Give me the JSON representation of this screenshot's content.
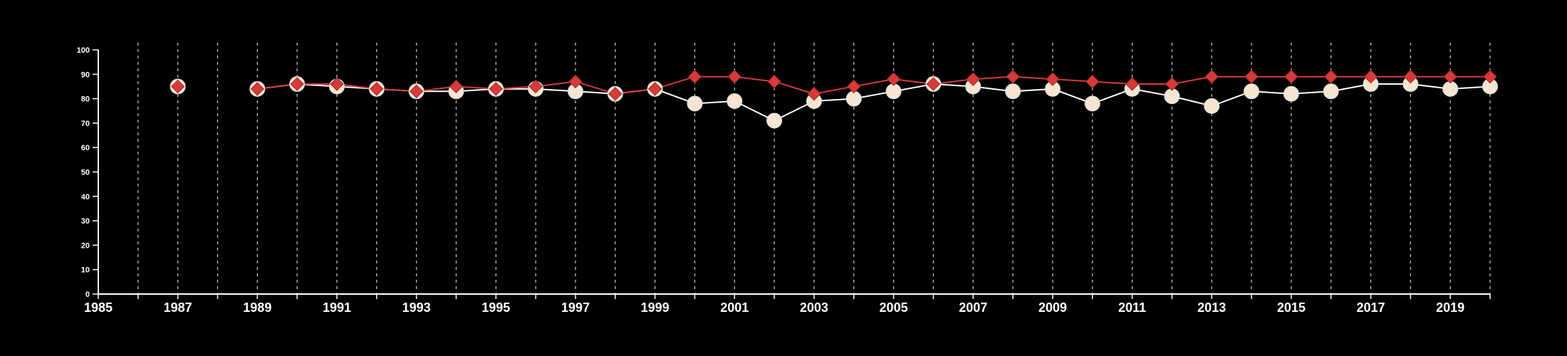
{
  "chart_data": {
    "type": "line",
    "title": "",
    "xlabel": "",
    "ylabel": "",
    "xlim": [
      1985,
      2020
    ],
    "ylim": [
      0,
      100
    ],
    "x_ticks": [
      1985,
      1987,
      1989,
      1991,
      1993,
      1995,
      1997,
      1999,
      2001,
      2003,
      2005,
      2007,
      2009,
      2011,
      2013,
      2015,
      2017,
      2019
    ],
    "x_tick_labels": [
      "1985",
      "1987",
      "1989",
      "1991",
      "1993",
      "1995",
      "1997",
      "1999",
      "2001",
      "2003",
      "2005",
      "2007",
      "2009",
      "2011",
      "2013",
      "2015",
      "2017",
      "2019"
    ],
    "y_ticks": [
      0,
      10,
      20,
      30,
      40,
      50,
      60,
      70,
      80,
      90,
      100
    ],
    "y_tick_labels": [
      "0",
      "10",
      "20",
      "30",
      "40",
      "50",
      "60",
      "70",
      "80",
      "90",
      "100"
    ],
    "grid": {
      "vertical": true,
      "horizontal": false,
      "style": "dashed",
      "color": "#bfbfbf"
    },
    "background_color": "#000000",
    "axis_color": "#ffffff",
    "series": [
      {
        "marker": "circle",
        "color": "#f5e6d3",
        "line_color": "#ffffff",
        "marker_stroke": "#d9d9d9",
        "points": [
          {
            "x": 1987,
            "y": 85
          },
          {
            "x": 1989,
            "y": 84
          },
          {
            "x": 1990,
            "y": 86
          },
          {
            "x": 1991,
            "y": 85
          },
          {
            "x": 1992,
            "y": 84
          },
          {
            "x": 1993,
            "y": 83
          },
          {
            "x": 1994,
            "y": 83
          },
          {
            "x": 1995,
            "y": 84
          },
          {
            "x": 1996,
            "y": 84
          },
          {
            "x": 1997,
            "y": 83
          },
          {
            "x": 1998,
            "y": 82
          },
          {
            "x": 1999,
            "y": 84
          },
          {
            "x": 2000,
            "y": 78
          },
          {
            "x": 2001,
            "y": 79
          },
          {
            "x": 2002,
            "y": 71
          },
          {
            "x": 2003,
            "y": 79
          },
          {
            "x": 2004,
            "y": 80
          },
          {
            "x": 2005,
            "y": 83
          },
          {
            "x": 2006,
            "y": 86
          },
          {
            "x": 2007,
            "y": 85
          },
          {
            "x": 2008,
            "y": 83
          },
          {
            "x": 2009,
            "y": 84
          },
          {
            "x": 2010,
            "y": 78
          },
          {
            "x": 2011,
            "y": 84
          },
          {
            "x": 2012,
            "y": 81
          },
          {
            "x": 2013,
            "y": 77
          },
          {
            "x": 2014,
            "y": 83
          },
          {
            "x": 2015,
            "y": 82
          },
          {
            "x": 2016,
            "y": 83
          },
          {
            "x": 2017,
            "y": 86
          },
          {
            "x": 2018,
            "y": 86
          },
          {
            "x": 2019,
            "y": 84
          },
          {
            "x": 2020,
            "y": 85
          }
        ]
      },
      {
        "marker": "diamond",
        "color": "#d63a3a",
        "line_color": "#d63a3a",
        "marker_stroke": "#a82828",
        "points": [
          {
            "x": 1987,
            "y": 85
          },
          {
            "x": 1989,
            "y": 84
          },
          {
            "x": 1990,
            "y": 86
          },
          {
            "x": 1991,
            "y": 86
          },
          {
            "x": 1992,
            "y": 84
          },
          {
            "x": 1993,
            "y": 83
          },
          {
            "x": 1994,
            "y": 85
          },
          {
            "x": 1995,
            "y": 84
          },
          {
            "x": 1996,
            "y": 85
          },
          {
            "x": 1997,
            "y": 87
          },
          {
            "x": 1998,
            "y": 82
          },
          {
            "x": 1999,
            "y": 84
          },
          {
            "x": 2000,
            "y": 89
          },
          {
            "x": 2001,
            "y": 89
          },
          {
            "x": 2002,
            "y": 87
          },
          {
            "x": 2003,
            "y": 82
          },
          {
            "x": 2004,
            "y": 85
          },
          {
            "x": 2005,
            "y": 88
          },
          {
            "x": 2006,
            "y": 86
          },
          {
            "x": 2007,
            "y": 88
          },
          {
            "x": 2008,
            "y": 89
          },
          {
            "x": 2009,
            "y": 88
          },
          {
            "x": 2010,
            "y": 87
          },
          {
            "x": 2011,
            "y": 86
          },
          {
            "x": 2012,
            "y": 86
          },
          {
            "x": 2013,
            "y": 89
          },
          {
            "x": 2014,
            "y": 89
          },
          {
            "x": 2015,
            "y": 89
          },
          {
            "x": 2016,
            "y": 89
          },
          {
            "x": 2017,
            "y": 89
          },
          {
            "x": 2018,
            "y": 89
          },
          {
            "x": 2019,
            "y": 89
          },
          {
            "x": 2020,
            "y": 89
          }
        ]
      }
    ]
  }
}
